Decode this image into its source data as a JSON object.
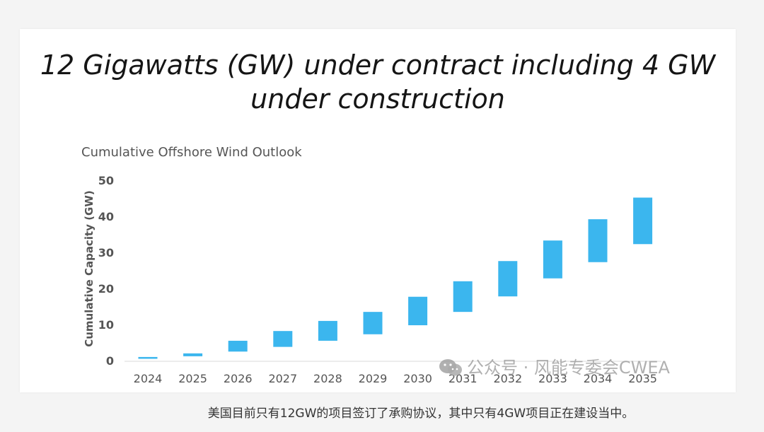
{
  "title_lines": [
    "12 Gigawatts (GW) under contract including 4 GW",
    "under construction"
  ],
  "caption": "美国目前只有12GW的项目签订了承购协议，其中只有4GW项目正在建设当中。",
  "watermark": {
    "text": "公众号 · 风能专委会CWEA",
    "icon": "wechat-icon"
  },
  "colors": {
    "bar": "#3bb6ee",
    "text": "#555555",
    "axis_line": "#d9d9d9"
  },
  "chart_data": {
    "type": "bar",
    "subtitle": "Cumulative Offshore Wind Outlook",
    "ylabel": "Cumulative Capacity (GW)",
    "xlabel": "",
    "ylim": [
      0,
      50
    ],
    "yticks": [
      0,
      10,
      20,
      30,
      40,
      50
    ],
    "grid": false,
    "categories": [
      "2024",
      "2025",
      "2026",
      "2027",
      "2028",
      "2029",
      "2030",
      "2031",
      "2032",
      "2033",
      "2034",
      "2035"
    ],
    "series": [
      {
        "low": [
          0.5,
          1.2,
          2.5,
          3.8,
          5.5,
          7.3,
          9.8,
          13.5,
          17.8,
          22.8,
          27.3,
          32.3
        ],
        "high": [
          1.0,
          2.0,
          5.5,
          8.2,
          11.0,
          13.5,
          17.7,
          22.0,
          27.6,
          33.3,
          39.2,
          45.2
        ]
      }
    ]
  }
}
